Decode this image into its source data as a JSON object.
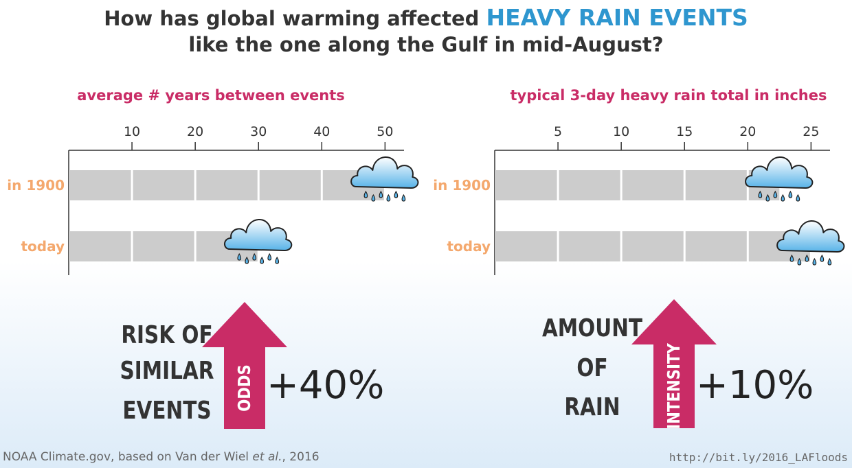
{
  "title": {
    "prefix": "How has global warming affected",
    "highlight": "HEAVY RAIN EVENTS",
    "line2": "like the one along the Gulf in mid-August?"
  },
  "colors": {
    "magenta": "#c92c66",
    "orange": "#f4a86d",
    "blue": "#2e96cf",
    "bar": "#cccccc",
    "dark": "#333333"
  },
  "chart_data": [
    {
      "type": "bar",
      "orientation": "horizontal",
      "title": "average # years between events",
      "categories": [
        "in 1900",
        "today"
      ],
      "values": [
        50,
        30
      ],
      "xticks": [
        10,
        20,
        30,
        40,
        50
      ],
      "xlim": [
        0,
        53
      ],
      "grid": true,
      "marker": "rain-cloud"
    },
    {
      "type": "bar",
      "orientation": "horizontal",
      "title": "typical 3-day heavy rain total in inches",
      "categories": [
        "in 1900",
        "today"
      ],
      "values": [
        22.5,
        25
      ],
      "xticks": [
        5,
        10,
        15,
        20,
        25
      ],
      "xlim": [
        0,
        26.5
      ],
      "grid": true,
      "marker": "rain-cloud"
    }
  ],
  "callouts": [
    {
      "label_lines": [
        "RISK OF",
        "SIMILAR",
        "EVENTS"
      ],
      "arrow_text": "ODDS",
      "change": "+40%"
    },
    {
      "label_lines": [
        "AMOUNT",
        "OF",
        "RAIN"
      ],
      "arrow_text": "INTENSITY",
      "change": "+10%"
    }
  ],
  "footer": {
    "left_main": "NOAA Climate.gov, based on Van der Wiel ",
    "left_italic": "et al.",
    "left_end": ", 2016",
    "right": "http://bit.ly/2016_LAFloods"
  }
}
